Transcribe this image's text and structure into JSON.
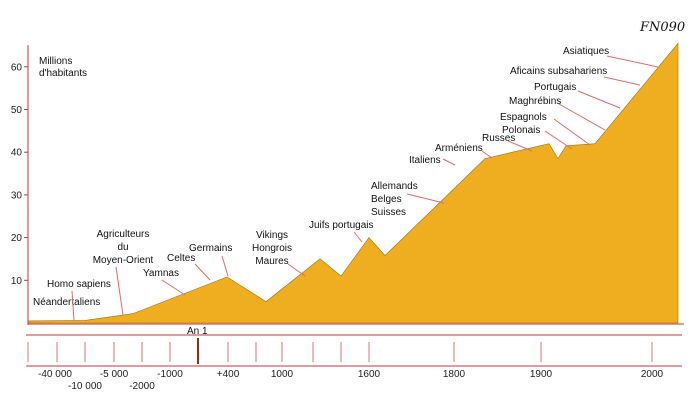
{
  "chart_data": {
    "type": "area",
    "brand_text": "FN090",
    "ylabel_lines": [
      "Millions",
      "d'habitants"
    ],
    "ylim": [
      0,
      66
    ],
    "y_ticks": [
      10,
      20,
      30,
      40,
      50,
      60
    ],
    "area_color": "#EFAE1F",
    "area_points": [
      {
        "x": "-50 000",
        "y": 0.5
      },
      {
        "x": "-10 000",
        "y": 0.6
      },
      {
        "x": "-2000",
        "y": 2.2
      },
      {
        "x": "+400",
        "y": 10.8
      },
      {
        "x": "800",
        "y": 5.0
      },
      {
        "x": "1090",
        "y": 15.0
      },
      {
        "x": "1200",
        "y": 11.0
      },
      {
        "x": "1300",
        "y": 20.0
      },
      {
        "x": "1400",
        "y": 15.8
      },
      {
        "x": "1840",
        "y": 38.5
      },
      {
        "x": "1910",
        "y": 42.0
      },
      {
        "x": "1920",
        "y": 38.5
      },
      {
        "x": "1935",
        "y": 41.5
      },
      {
        "x": "1975",
        "y": 42.0
      },
      {
        "x": "2030",
        "y": 65.5
      }
    ],
    "x_tick_labels": [
      {
        "text": "-40 000",
        "row": 0
      },
      {
        "text": "-10 000",
        "row": 1
      },
      {
        "text": "-5 000",
        "row": 0
      },
      {
        "text": "-2000",
        "row": 1
      },
      {
        "text": "-1000",
        "row": 0
      },
      {
        "text": "+400",
        "row": 0
      },
      {
        "text": "1000",
        "row": 0
      },
      {
        "text": "1600",
        "row": 0
      },
      {
        "text": "1800",
        "row": 0
      },
      {
        "text": "1900",
        "row": 0
      },
      {
        "text": "2000",
        "row": 0
      }
    ],
    "marker": {
      "text": "An 1",
      "color": "#8B2E1A"
    },
    "annotations": [
      {
        "lines": [
          "Néandertaliens"
        ]
      },
      {
        "lines": [
          "Homo sapiens"
        ]
      },
      {
        "lines": [
          "Agriculteurs",
          "du",
          "Moyen-Orient"
        ]
      },
      {
        "lines": [
          "Yamnas"
        ]
      },
      {
        "lines": [
          "Celtes"
        ]
      },
      {
        "lines": [
          "Germains"
        ]
      },
      {
        "lines": [
          "Vikings",
          "Hongrois",
          "Maures"
        ]
      },
      {
        "lines": [
          "Juifs portugais"
        ]
      },
      {
        "lines": [
          "Allemands",
          "Belges",
          "Suisses"
        ]
      },
      {
        "lines": [
          "Italiens"
        ]
      },
      {
        "lines": [
          "Arméniens"
        ]
      },
      {
        "lines": [
          "Russes"
        ]
      },
      {
        "lines": [
          "Polonais"
        ]
      },
      {
        "lines": [
          "Espagnols"
        ]
      },
      {
        "lines": [
          "Maghrébins"
        ]
      },
      {
        "lines": [
          "Portugais"
        ]
      },
      {
        "lines": [
          "Aficains subsahariens"
        ]
      },
      {
        "lines": [
          "Asiatiques"
        ]
      }
    ]
  }
}
